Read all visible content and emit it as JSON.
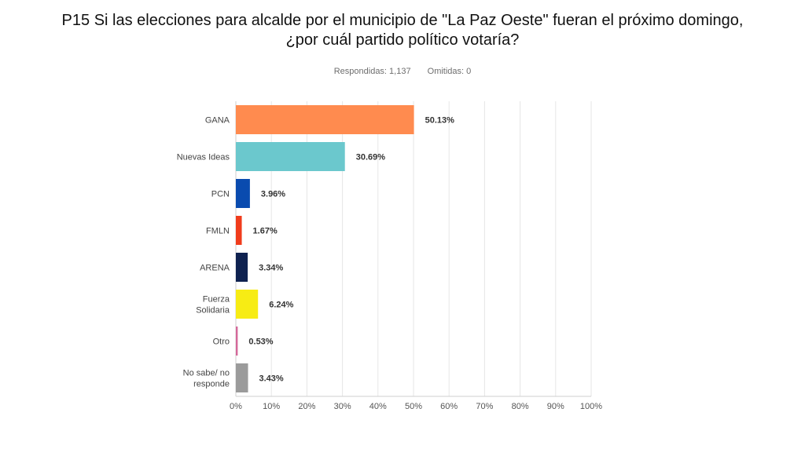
{
  "title": {
    "line1": "P15 Si las elecciones para alcalde por el municipio de \"La Paz Oeste\" fueran el próximo domingo,",
    "line2": "¿por cuál partido político votaría?"
  },
  "meta": {
    "answered": "Respondidas: 1,137",
    "skipped": "Omitidas: 0"
  },
  "chart_data": {
    "type": "bar",
    "orientation": "horizontal",
    "title": "P15 Si las elecciones para alcalde por el municipio de \"La Paz Oeste\" fueran el próximo domingo, ¿por cuál partido político votaría?",
    "xlabel": "",
    "ylabel": "",
    "xlim": [
      0,
      100
    ],
    "grid": true,
    "tick_labels": [
      "0%",
      "10%",
      "20%",
      "30%",
      "40%",
      "50%",
      "60%",
      "70%",
      "80%",
      "90%",
      "100%"
    ],
    "categories": [
      [
        "GANA"
      ],
      [
        "Nuevas Ideas"
      ],
      [
        "PCN"
      ],
      [
        "FMLN"
      ],
      [
        "ARENA"
      ],
      [
        "Fuerza",
        "Solidaria"
      ],
      [
        "Otro"
      ],
      [
        "No sabe/ no",
        "responde"
      ]
    ],
    "values": [
      50.13,
      30.69,
      3.96,
      1.67,
      3.34,
      6.24,
      0.53,
      3.43
    ],
    "value_labels": [
      "50.13%",
      "30.69%",
      "3.96%",
      "1.67%",
      "3.34%",
      "6.24%",
      "0.53%",
      "3.43%"
    ],
    "colors": [
      "#FF8B4F",
      "#6BC8CD",
      "#0A4BAF",
      "#F03C1C",
      "#0F2250",
      "#F7EC14",
      "#D4689A",
      "#9B9B9B"
    ]
  }
}
